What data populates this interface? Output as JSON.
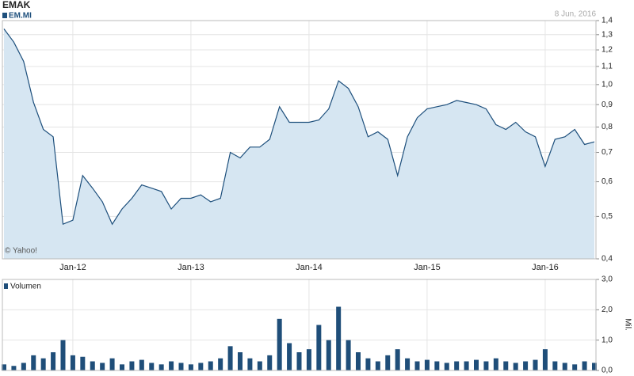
{
  "chart_data": [
    {
      "type": "area",
      "title": "EMAK",
      "date": "8 Jun, 2016",
      "annotation": "© Yahoo!",
      "log_scale": true,
      "grid": true,
      "x": [
        "Jun-11",
        "Jul-11",
        "Aug-11",
        "Sep-11",
        "Oct-11",
        "Nov-11",
        "Dec-11",
        "Jan-12",
        "Feb-12",
        "Mar-12",
        "Apr-12",
        "May-12",
        "Jun-12",
        "Jul-12",
        "Aug-12",
        "Sep-12",
        "Oct-12",
        "Nov-12",
        "Dec-12",
        "Jan-13",
        "Feb-13",
        "Mar-13",
        "Apr-13",
        "May-13",
        "Jun-13",
        "Jul-13",
        "Aug-13",
        "Sep-13",
        "Oct-13",
        "Nov-13",
        "Dec-13",
        "Jan-14",
        "Feb-14",
        "Mar-14",
        "Apr-14",
        "May-14",
        "Jun-14",
        "Jul-14",
        "Aug-14",
        "Sep-14",
        "Oct-14",
        "Nov-14",
        "Dec-14",
        "Jan-15",
        "Feb-15",
        "Mar-15",
        "Apr-15",
        "May-15",
        "Jun-15",
        "Jul-15",
        "Aug-15",
        "Sep-15",
        "Oct-15",
        "Nov-15",
        "Dec-15",
        "Jan-16",
        "Feb-16",
        "Mar-16",
        "Apr-16",
        "May-16",
        "Jun-16"
      ],
      "series": [
        {
          "name": "EM.MI",
          "color": "#1d4f7c",
          "fill": "#d6e6f2",
          "values": [
            1.34,
            1.25,
            1.13,
            0.91,
            0.79,
            0.76,
            0.48,
            0.49,
            0.62,
            0.58,
            0.54,
            0.48,
            0.52,
            0.55,
            0.59,
            0.58,
            0.57,
            0.52,
            0.55,
            0.55,
            0.56,
            0.54,
            0.55,
            0.7,
            0.68,
            0.72,
            0.72,
            0.75,
            0.89,
            0.82,
            0.82,
            0.82,
            0.83,
            0.88,
            1.02,
            0.98,
            0.89,
            0.76,
            0.78,
            0.75,
            0.62,
            0.76,
            0.84,
            0.88,
            0.89,
            0.9,
            0.92,
            0.91,
            0.9,
            0.88,
            0.81,
            0.79,
            0.82,
            0.78,
            0.76,
            0.65,
            0.75,
            0.76,
            0.79,
            0.73,
            0.74
          ]
        }
      ],
      "xticks": [
        "Jan-12",
        "Jan-13",
        "Jan-14",
        "Jan-15",
        "Jan-16"
      ],
      "ylim": [
        0.4,
        1.4
      ],
      "yticks": [
        {
          "value": 0.4,
          "label": "0,4"
        },
        {
          "value": 0.5,
          "label": "0,5"
        },
        {
          "value": 0.6,
          "label": "0,6"
        },
        {
          "value": 0.7,
          "label": "0,7"
        },
        {
          "value": 0.8,
          "label": "0,8"
        },
        {
          "value": 0.9,
          "label": "0,9"
        },
        {
          "value": 1.0,
          "label": "1,0"
        },
        {
          "value": 1.1,
          "label": "1,1"
        },
        {
          "value": 1.2,
          "label": "1,2"
        },
        {
          "value": 1.3,
          "label": "1,3"
        },
        {
          "value": 1.4,
          "label": "1,4"
        }
      ]
    },
    {
      "type": "bar",
      "y_label": "Mil.",
      "grid": true,
      "x": [
        "Jun-11",
        "Jul-11",
        "Aug-11",
        "Sep-11",
        "Oct-11",
        "Nov-11",
        "Dec-11",
        "Jan-12",
        "Feb-12",
        "Mar-12",
        "Apr-12",
        "May-12",
        "Jun-12",
        "Jul-12",
        "Aug-12",
        "Sep-12",
        "Oct-12",
        "Nov-12",
        "Dec-12",
        "Jan-13",
        "Feb-13",
        "Mar-13",
        "Apr-13",
        "May-13",
        "Jun-13",
        "Jul-13",
        "Aug-13",
        "Sep-13",
        "Oct-13",
        "Nov-13",
        "Dec-13",
        "Jan-14",
        "Feb-14",
        "Mar-14",
        "Apr-14",
        "May-14",
        "Jun-14",
        "Jul-14",
        "Aug-14",
        "Sep-14",
        "Oct-14",
        "Nov-14",
        "Dec-14",
        "Jan-15",
        "Feb-15",
        "Mar-15",
        "Apr-15",
        "May-15",
        "Jun-15",
        "Jul-15",
        "Aug-15",
        "Sep-15",
        "Oct-15",
        "Nov-15",
        "Dec-15",
        "Jan-16",
        "Feb-16",
        "Mar-16",
        "Apr-16",
        "May-16",
        "Jun-16"
      ],
      "series": [
        {
          "name": "Volumen",
          "color": "#1f4e79",
          "values": [
            0.2,
            0.15,
            0.25,
            0.5,
            0.4,
            0.6,
            1.0,
            0.5,
            0.45,
            0.3,
            0.25,
            0.4,
            0.2,
            0.3,
            0.35,
            0.25,
            0.2,
            0.3,
            0.25,
            0.2,
            0.25,
            0.3,
            0.4,
            0.8,
            0.6,
            0.4,
            0.3,
            0.5,
            1.7,
            0.9,
            0.6,
            0.7,
            1.5,
            1.0,
            2.1,
            1.0,
            0.6,
            0.4,
            0.3,
            0.5,
            0.7,
            0.4,
            0.3,
            0.35,
            0.3,
            0.25,
            0.3,
            0.3,
            0.35,
            0.3,
            0.4,
            0.3,
            0.25,
            0.3,
            0.35,
            0.7,
            0.3,
            0.25,
            0.2,
            0.3,
            0.25
          ]
        }
      ],
      "ylim": [
        0,
        3
      ],
      "yticks": [
        {
          "value": 0,
          "label": "0,0"
        },
        {
          "value": 1,
          "label": "1,0"
        },
        {
          "value": 2,
          "label": "2,0"
        },
        {
          "value": 3,
          "label": "3,0"
        }
      ]
    }
  ]
}
